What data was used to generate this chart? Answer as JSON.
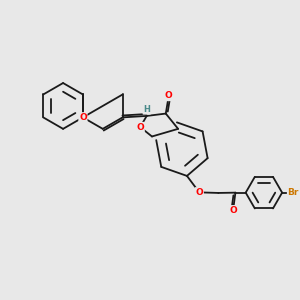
{
  "background_color": "#e8e8e8",
  "bond_color": "#1a1a1a",
  "bond_width": 1.3,
  "oxygen_color": "#ff0000",
  "bromine_color": "#cc7700",
  "hydrogen_color": "#4a8a8a",
  "font_size_atom": 6.5,
  "figsize": [
    3.0,
    3.0
  ],
  "dpi": 100,
  "xlim": [
    0,
    10
  ],
  "ylim": [
    0,
    10
  ]
}
